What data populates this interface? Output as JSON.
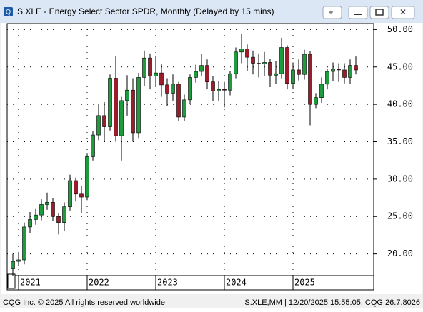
{
  "chart_data": {
    "type": "candlestick",
    "title": "S.XLE - Energy Select Sector SPDR, Monthly (Delayed by 15 mins)",
    "footer_left": "CQG Inc. © 2025 All rights reserved worldwide",
    "footer_right": "S.XLE,MM | 12/20/2025 15:55:05, CQG 26.7.8026",
    "categories": [
      null,
      "2021",
      null,
      null,
      null,
      null,
      null,
      null,
      null,
      null,
      null,
      null,
      null,
      "2022",
      null,
      null,
      null,
      null,
      null,
      null,
      null,
      null,
      null,
      null,
      null,
      "2023",
      null,
      null,
      null,
      null,
      null,
      null,
      null,
      null,
      null,
      null,
      null,
      "2024",
      null,
      null,
      null,
      null,
      null,
      null,
      null,
      null,
      null,
      null,
      null,
      "2025",
      null,
      null,
      null,
      null,
      null,
      null,
      null,
      null,
      null,
      null,
      null
    ],
    "open": [
      18.0,
      19.0,
      19.2,
      23.6,
      24.6,
      25.2,
      26.6,
      26.9,
      25.0,
      24.2,
      26.3,
      29.8,
      28.0,
      27.6,
      33.0,
      35.9,
      38.5,
      37.0,
      43.5,
      35.8,
      40.5,
      41.9,
      36.2,
      43.6,
      46.2,
      43.8,
      44.2,
      42.6,
      41.5,
      42.7,
      38.3,
      40.6,
      43.6,
      44.4,
      45.2,
      43.0,
      41.8,
      42.0,
      41.9,
      44.1,
      47.0,
      47.4,
      46.3,
      45.5,
      45.4,
      45.6,
      43.9,
      44.1,
      47.6,
      42.8,
      44.6,
      44.0,
      46.7,
      40.0,
      40.9,
      42.7,
      44.4,
      44.7,
      44.6,
      43.6,
      45.2
    ],
    "high": [
      20.0,
      20.1,
      24.2,
      25.6,
      26.0,
      27.3,
      28.2,
      27.5,
      25.5,
      26.9,
      30.6,
      30.2,
      29.1,
      33.5,
      36.4,
      40.0,
      40.3,
      44.0,
      46.4,
      41.0,
      43.9,
      43.5,
      44.2,
      47.2,
      46.8,
      46.5,
      45.4,
      43.5,
      44.0,
      43.0,
      41.3,
      44.0,
      45.3,
      46.7,
      46.0,
      43.8,
      43.1,
      43.0,
      44.5,
      47.6,
      49.4,
      48.0,
      47.2,
      46.8,
      47.0,
      46.1,
      45.8,
      48.9,
      47.9,
      45.6,
      46.0,
      47.3,
      47.1,
      41.5,
      43.6,
      44.8,
      45.6,
      45.5,
      45.5,
      46.0,
      46.4
    ],
    "low": [
      17.0,
      18.4,
      18.6,
      22.8,
      23.9,
      24.5,
      25.9,
      24.4,
      22.6,
      23.1,
      25.8,
      27.0,
      25.5,
      27.2,
      32.5,
      35.2,
      35.0,
      36.5,
      35.0,
      32.5,
      38.5,
      35.0,
      35.5,
      42.5,
      42.0,
      42.5,
      41.0,
      39.8,
      40.5,
      37.8,
      37.8,
      40.0,
      42.9,
      43.8,
      42.0,
      40.4,
      40.5,
      39.6,
      41.2,
      43.5,
      45.5,
      44.5,
      44.0,
      43.6,
      43.8,
      42.3,
      42.7,
      43.5,
      42.0,
      42.0,
      43.2,
      43.3,
      37.2,
      39.5,
      40.2,
      42.0,
      43.1,
      43.0,
      42.8,
      42.7,
      44.0
    ],
    "close": [
      19.0,
      19.2,
      23.6,
      24.6,
      25.2,
      26.6,
      26.9,
      25.0,
      24.2,
      26.3,
      29.8,
      28.0,
      27.6,
      33.0,
      35.9,
      38.5,
      37.0,
      43.5,
      35.8,
      40.5,
      41.9,
      36.2,
      43.6,
      46.2,
      43.8,
      44.2,
      42.6,
      41.5,
      42.7,
      38.3,
      40.6,
      43.6,
      44.4,
      45.2,
      43.0,
      41.8,
      42.0,
      41.9,
      44.1,
      47.0,
      47.4,
      46.3,
      45.5,
      45.4,
      45.6,
      43.9,
      44.1,
      47.6,
      42.8,
      44.6,
      44.0,
      46.7,
      40.0,
      40.9,
      42.7,
      44.4,
      44.7,
      44.6,
      43.6,
      45.2,
      44.6
    ],
    "up_color": "#1f9a3c",
    "down_color": "#9b1c2a",
    "ylim": [
      17.1,
      50.8
    ],
    "yticks": [
      {
        "value": 20,
        "label": "20.00"
      },
      {
        "value": 25,
        "label": "25.00"
      },
      {
        "value": 30,
        "label": "30.00"
      },
      {
        "value": 35,
        "label": "35.00"
      },
      {
        "value": 40,
        "label": "40.00"
      },
      {
        "value": 45,
        "label": "45.00"
      },
      {
        "value": 50,
        "label": "50.00"
      }
    ],
    "grid": true
  }
}
